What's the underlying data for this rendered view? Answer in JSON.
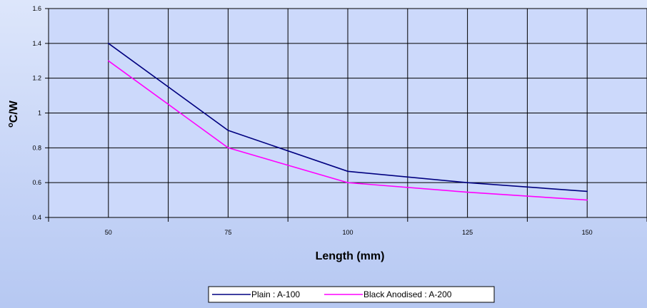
{
  "chart_data": {
    "type": "line",
    "x": [
      50,
      75,
      100,
      125,
      150
    ],
    "series": [
      {
        "name": "Plain : A-100",
        "color": "#000080",
        "values": [
          1.4,
          0.9,
          0.665,
          0.6,
          0.55
        ]
      },
      {
        "name": "Black Anodised : A-200",
        "color": "#ff00ff",
        "values": [
          1.3,
          0.8,
          0.6,
          0.545,
          0.5
        ]
      }
    ],
    "x_tick_labels": [
      "50",
      "75",
      "100",
      "125",
      "150"
    ],
    "y_tick_labels": [
      "0.4",
      "0.6",
      "0.8",
      "1",
      "1.2",
      "1.4",
      "1.6"
    ],
    "y_ticks": [
      0.4,
      0.6,
      0.8,
      1.0,
      1.2,
      1.4,
      1.6
    ],
    "ylim": [
      0.4,
      1.6
    ],
    "xlabel": "Length (mm)",
    "ylabel_degree": "o",
    "ylabel_rest": "C/W",
    "grid": true,
    "legend_position": "bottom-center",
    "plot_background": "#ccd9fb",
    "grid_color": "#000000"
  }
}
